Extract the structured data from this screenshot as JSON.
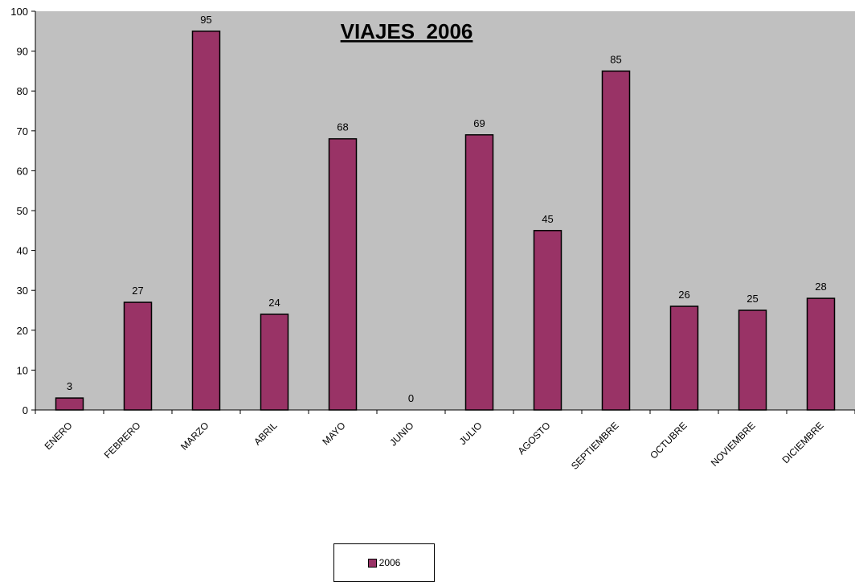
{
  "chart_data": {
    "type": "bar",
    "title": "VIAJES  2006",
    "categories": [
      "ENERO",
      "FEBRERO",
      "MARZO",
      "ABRIL",
      "MAYO",
      "JUNIO",
      "JULIO",
      "AGOSTO",
      "SEPTIEMBRE",
      "OCTUBRE",
      "NOVIEMBRE",
      "DICIEMBRE"
    ],
    "series": [
      {
        "name": "2006",
        "values": [
          3,
          27,
          95,
          24,
          68,
          0,
          69,
          45,
          85,
          26,
          25,
          28
        ]
      }
    ],
    "ylim": [
      0,
      100
    ],
    "yticks": [
      0,
      10,
      20,
      30,
      40,
      50,
      60,
      70,
      80,
      90,
      100
    ],
    "xlabel": "",
    "ylabel": "",
    "grid": false,
    "legend": "bottom",
    "colors": {
      "bar": "#993366",
      "plot_bg": "#c0c0c0"
    }
  }
}
